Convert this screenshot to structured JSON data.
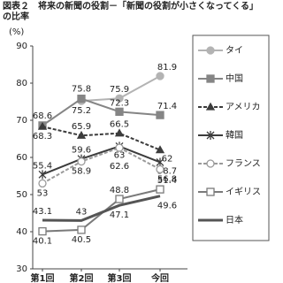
{
  "chart_data": {
    "type": "line",
    "title": "図表２　将来の新聞の役割－「新聞の役割が小さくなってくる」の比率",
    "y_label": "(%)",
    "categories": [
      "第1回",
      "第2回",
      "第3回",
      "今回"
    ],
    "ylim": [
      30,
      90
    ],
    "yticks": [
      30,
      40,
      50,
      60,
      70,
      80,
      90
    ],
    "series": [
      {
        "name": "タイ",
        "color": "#b3b3b3",
        "marker": "circle",
        "dashed": false,
        "values": [
          null,
          75.2,
          75.9,
          81.9
        ]
      },
      {
        "name": "中国",
        "color": "#858585",
        "marker": "square",
        "dashed": false,
        "values": [
          68.6,
          75.8,
          72.3,
          71.4
        ]
      },
      {
        "name": "アメリカ",
        "color": "#3c3c3c",
        "marker": "triangle",
        "dashed": true,
        "values": [
          68.3,
          65.9,
          66.5,
          62.0
        ]
      },
      {
        "name": "韓国",
        "color": "#3c3c3c",
        "marker": "star",
        "dashed": false,
        "values": [
          55.4,
          59.6,
          63.0,
          58.7
        ]
      },
      {
        "name": "フランス",
        "color": "#9a9a9a",
        "marker": "open-circle",
        "dashed": true,
        "values": [
          53.0,
          58.9,
          62.6,
          56.8
        ]
      },
      {
        "name": "イギリス",
        "color": "#7a7a7a",
        "marker": "open-square",
        "dashed": false,
        "values": [
          40.1,
          40.5,
          48.8,
          51.4
        ]
      },
      {
        "name": "日本",
        "color": "#555555",
        "marker": "none",
        "dashed": false,
        "values": [
          43.1,
          43.0,
          47.1,
          49.6
        ]
      }
    ]
  }
}
